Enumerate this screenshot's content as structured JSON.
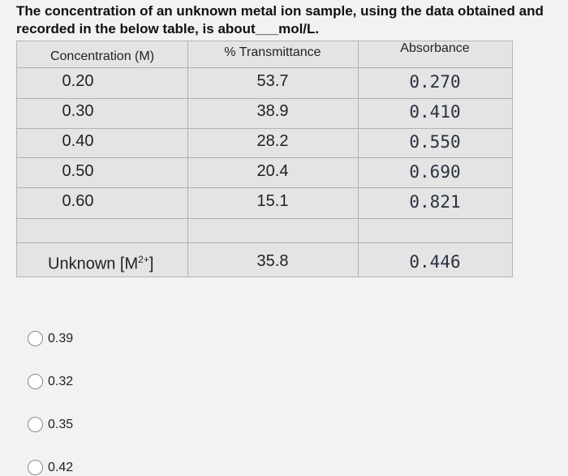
{
  "question": {
    "line1": "The concentration of an unknown metal ion sample, using the data obtained and",
    "line2": "recorded in the below table, is about___mol/L."
  },
  "table": {
    "headers": [
      "Concentration (M)",
      "% Transmittance",
      "Absorbance"
    ],
    "rows": [
      [
        "0.20",
        "53.7",
        "0.270"
      ],
      [
        "0.30",
        "38.9",
        "0.410"
      ],
      [
        "0.40",
        "28.2",
        "0.550"
      ],
      [
        "0.50",
        "20.4",
        "0.690"
      ],
      [
        "0.60",
        "15.1",
        "0.821"
      ]
    ],
    "unknown": {
      "label": "Unknown [M",
      "charge": "2+",
      "label_end": "]",
      "transmittance": "35.8",
      "absorbance": "0.446"
    }
  },
  "options": [
    "0.39",
    "0.32",
    "0.35",
    "0.42"
  ]
}
